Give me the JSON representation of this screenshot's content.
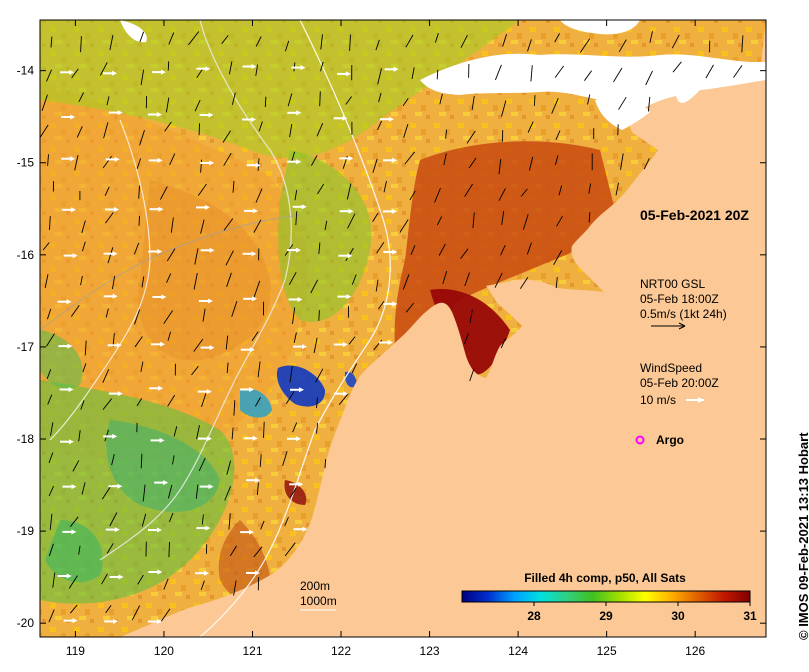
{
  "map": {
    "lon_range": [
      118.6,
      126.8
    ],
    "lat_range": [
      -20.15,
      -13.45
    ],
    "x_ticks": [
      119,
      120,
      121,
      122,
      123,
      124,
      125,
      126
    ],
    "y_ticks": [
      -14,
      -15,
      -16,
      -17,
      -18,
      -19,
      -20
    ],
    "x_tick_labels": [
      "119",
      "120",
      "121",
      "122",
      "123",
      "124",
      "125",
      "126"
    ],
    "y_tick_labels": [
      "-14",
      "-15",
      "-16",
      "-17",
      "-18",
      "-19",
      "-20"
    ],
    "land_color": "#fcc996",
    "cloud_color": "#ffffff"
  },
  "annotations": {
    "timestamp": "05-Feb-2021 20Z",
    "current_source": "NRT00 GSL",
    "current_time": "05-Feb 18:00Z",
    "current_scale": "0.5m/s (1kt 24h)",
    "wind_title": "WindSpeed",
    "wind_time": "05-Feb 20:00Z",
    "wind_scale": "10 m/s",
    "argo_label": "Argo",
    "argo_color": "#ff00ff",
    "isobath_200": "200m",
    "isobath_1000": "1000m"
  },
  "colorbar": {
    "title": "Filled 4h comp, p50, All Sats",
    "min": 27,
    "max": 31,
    "tick_values": [
      28,
      29,
      30,
      31
    ],
    "tick_labels": [
      "28",
      "29",
      "30",
      "31"
    ],
    "colors": [
      "#000080",
      "#0030d0",
      "#00a0ff",
      "#00e0e0",
      "#30d080",
      "#40c020",
      "#a0e000",
      "#ffff00",
      "#ffb000",
      "#e06000",
      "#c01800",
      "#800000"
    ]
  },
  "credit": "© IMOS 09-Feb-2021 13:13 Hobart"
}
